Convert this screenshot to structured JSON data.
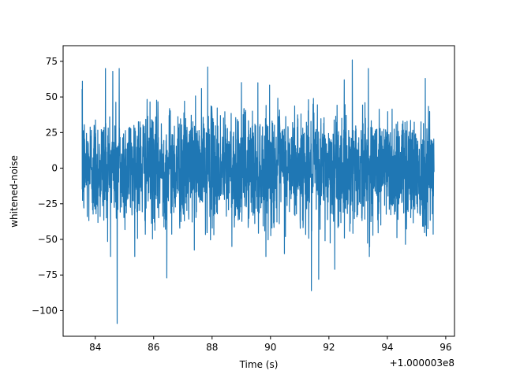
{
  "chart_data": {
    "type": "line",
    "title": "",
    "xlabel": "Time (s)",
    "ylabel": "whitened-noise",
    "x_offset_label": "+1.000003e8",
    "xlim": [
      82.9,
      96.3
    ],
    "ylim": [
      -118,
      86
    ],
    "x_ticks": [
      84,
      86,
      88,
      90,
      92,
      94,
      96
    ],
    "x_tick_labels": [
      "84",
      "86",
      "88",
      "90",
      "92",
      "94",
      "96"
    ],
    "y_ticks": [
      75,
      50,
      25,
      0,
      -25,
      -50,
      -75,
      -100
    ],
    "y_tick_labels": [
      "75",
      "50",
      "25",
      "0",
      "−25",
      "−50",
      "−75",
      "−100"
    ],
    "grid": false,
    "line_color": "#1f77b4",
    "series": [
      {
        "x_start": 83.55,
        "x_end": 95.6,
        "approx_std": 20,
        "peaks": [
          {
            "x": 83.56,
            "y": 61
          },
          {
            "x": 84.35,
            "y": 70
          },
          {
            "x": 84.6,
            "y": 68
          },
          {
            "x": 84.75,
            "y": -109
          },
          {
            "x": 84.82,
            "y": 70
          },
          {
            "x": 86.45,
            "y": -77
          },
          {
            "x": 87.85,
            "y": 71
          },
          {
            "x": 91.4,
            "y": -86
          },
          {
            "x": 91.65,
            "y": -78
          },
          {
            "x": 92.2,
            "y": -71
          },
          {
            "x": 92.8,
            "y": 76
          },
          {
            "x": 93.35,
            "y": 70
          },
          {
            "x": 95.3,
            "y": 63
          }
        ]
      }
    ]
  }
}
